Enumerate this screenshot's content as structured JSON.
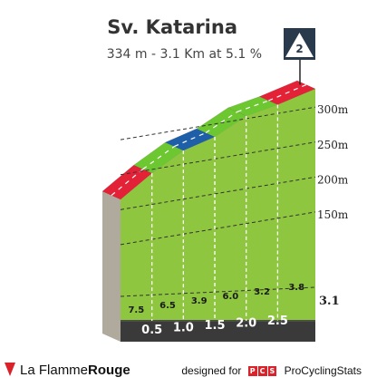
{
  "header": {
    "title": "Sv. Katarina",
    "subtitle": "334 m - 3.1 Km at 5.1 %",
    "category_badge": "2"
  },
  "chart_data": {
    "type": "area",
    "title": "Sv. Katarina",
    "xlabel": "",
    "ylabel": "",
    "distance_km": [
      0,
      0.5,
      1.0,
      1.5,
      2.0,
      2.5,
      3.1
    ],
    "segment_gradients": [
      7.5,
      6.5,
      3.9,
      6.0,
      3.2,
      3.8
    ],
    "segment_colors": [
      "#e32137",
      "#6dc731",
      "#1f5fa8",
      "#6dc731",
      "#6dc731",
      "#e32137"
    ],
    "y_ticks": [
      "150m",
      "200m",
      "250m",
      "300m"
    ],
    "x_tick_labels": [
      "0.5",
      "1.0",
      "1.5",
      "2.0",
      "2.5"
    ],
    "end_label": "3.1",
    "summit_elevation_m": 334,
    "length_km": 3.1,
    "average_gradient_pct": 5.1,
    "colors": {
      "face": "#8ec63f",
      "side": "#b0a99e",
      "base": "#3a3a3a",
      "badge": "#2a3a4d"
    }
  },
  "footer": {
    "brand_plain": "La Flamme",
    "brand_bold": "Rouge",
    "credit_prefix": "designed for",
    "pcs_logo": [
      "P",
      "C",
      "S"
    ],
    "credit_site": "ProCyclingStats"
  }
}
